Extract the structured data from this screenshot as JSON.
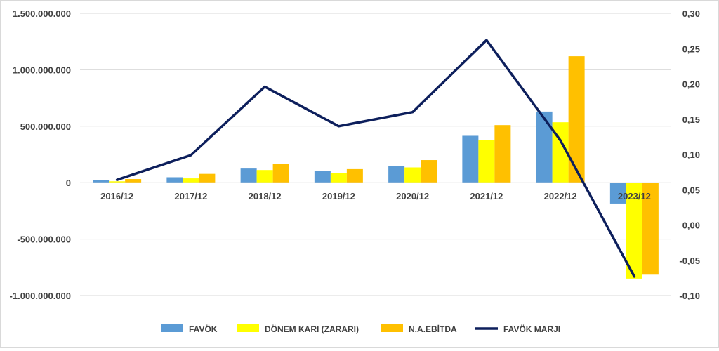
{
  "chart_data": {
    "type": "bar",
    "title": "",
    "xlabel": "",
    "ylabel": "",
    "categories": [
      "2016/12",
      "2017/12",
      "2018/12",
      "2019/12",
      "2020/12",
      "2021/12",
      "2022/12",
      "2023/12"
    ],
    "series": [
      {
        "name": "FAVÖK",
        "type": "bar",
        "axis": "left",
        "color": "#5b9bd5",
        "values": [
          20000000,
          48000000,
          125000000,
          105000000,
          145000000,
          415000000,
          630000000,
          -185000000
        ]
      },
      {
        "name": "DÖNEM KARI (ZARARI)",
        "type": "bar",
        "axis": "left",
        "color": "#ffff00",
        "values": [
          12000000,
          38000000,
          112000000,
          88000000,
          135000000,
          380000000,
          535000000,
          -850000000
        ]
      },
      {
        "name": "N.A.EBİTDA",
        "type": "bar",
        "axis": "left",
        "color": "#ffc000",
        "values": [
          32000000,
          78000000,
          165000000,
          120000000,
          200000000,
          510000000,
          1120000000,
          -815000000
        ]
      },
      {
        "name": "FAVÖK MARJI",
        "type": "line",
        "axis": "right",
        "color": "#0d1f5c",
        "values": [
          0.064,
          0.099,
          0.196,
          0.14,
          0.16,
          0.262,
          0.12,
          -0.073
        ]
      }
    ],
    "y_left": {
      "ylim": [
        -1000000000,
        1500000000
      ],
      "ticks": [
        1500000000,
        1000000000,
        500000000,
        0,
        -500000000,
        -1000000000
      ],
      "tick_labels": [
        "1.500.000.000",
        "1.000.000.000",
        "500.000.000",
        "0",
        "-500.000.000",
        "-1.000.000.000"
      ]
    },
    "y_right": {
      "ylim": [
        -0.1,
        0.3
      ],
      "ticks": [
        0.3,
        0.25,
        0.2,
        0.15,
        0.1,
        0.05,
        0.0,
        -0.05,
        -0.1
      ],
      "tick_labels": [
        "0,30",
        "0,25",
        "0,20",
        "0,15",
        "0,10",
        "0,05",
        "0,00",
        "-0,05",
        "-0,10"
      ]
    },
    "grid": true,
    "legend": "bottom"
  }
}
